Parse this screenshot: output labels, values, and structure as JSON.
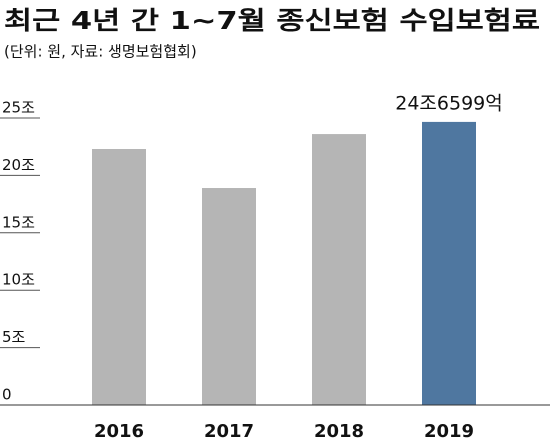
{
  "chart_data": {
    "type": "bar",
    "title": "최근 4년 간 1~7월 종신보험 수입보험료",
    "subtitle": "(단위: 원, 자료: 생명보험협회)",
    "categories": [
      "2016",
      "2017",
      "2018",
      "2019"
    ],
    "values": [
      22.3,
      18.9,
      23.6,
      24.6599
    ],
    "value_labels": [
      null,
      null,
      null,
      "24조6599억"
    ],
    "colors": [
      "#b5b5b5",
      "#b5b5b5",
      "#b5b5b5",
      "#4f77a0"
    ],
    "ylim": [
      0,
      25
    ],
    "yticks": [
      0,
      {
        "value": 5,
        "label": "5조"
      },
      {
        "value": 10,
        "label": "10조"
      },
      {
        "value": 15,
        "label": "15조"
      },
      {
        "value": 20,
        "label": "20조"
      },
      {
        "value": 25,
        "label": "25조"
      }
    ],
    "grid": false
  }
}
